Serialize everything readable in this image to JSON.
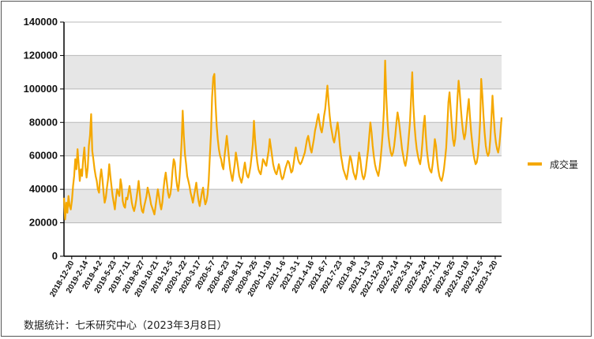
{
  "chart_data": {
    "type": "line",
    "series": [
      {
        "name": "成交量",
        "color": "#F5A800",
        "values": [
          35000,
          22000,
          32000,
          26000,
          36000,
          30000,
          28000,
          33000,
          42000,
          48000,
          58000,
          52000,
          64000,
          55000,
          45000,
          52000,
          48000,
          58000,
          65000,
          54000,
          47000,
          53000,
          66000,
          72000,
          85000,
          63000,
          58000,
          52000,
          48000,
          45000,
          40000,
          38000,
          47000,
          52000,
          46000,
          38000,
          32000,
          35000,
          41000,
          46000,
          55000,
          48000,
          42000,
          36000,
          32000,
          28000,
          35000,
          40000,
          38000,
          36000,
          46000,
          42000,
          33000,
          30000,
          29000,
          35000,
          34000,
          38000,
          42000,
          37000,
          32000,
          29000,
          27000,
          30000,
          34000,
          39000,
          45000,
          38000,
          31000,
          27000,
          26000,
          30000,
          33000,
          36000,
          41000,
          38000,
          35000,
          31000,
          29000,
          27000,
          25000,
          30000,
          35000,
          40000,
          36000,
          31000,
          28000,
          32000,
          40000,
          46000,
          50000,
          44000,
          38000,
          35000,
          37000,
          42000,
          51000,
          58000,
          56000,
          48000,
          42000,
          39000,
          45000,
          55000,
          68000,
          87000,
          72000,
          61000,
          55000,
          48000,
          45000,
          42000,
          38000,
          35000,
          32000,
          36000,
          40000,
          44000,
          38000,
          33000,
          30000,
          34000,
          38000,
          41000,
          35000,
          31000,
          33000,
          37000,
          45000,
          60000,
          73000,
          95000,
          107000,
          109000,
          92000,
          78000,
          70000,
          64000,
          60000,
          58000,
          54000,
          52000,
          60000,
          66000,
          72000,
          65000,
          58000,
          52000,
          48000,
          45000,
          50000,
          55000,
          62000,
          58000,
          53000,
          48000,
          46000,
          44000,
          47000,
          52000,
          56000,
          51000,
          48000,
          47000,
          50000,
          54000,
          60000,
          67000,
          81000,
          70000,
          62000,
          56000,
          52000,
          50000,
          49000,
          53000,
          58000,
          57000,
          55000,
          54000,
          59000,
          63000,
          70000,
          65000,
          60000,
          55000,
          52000,
          50000,
          49000,
          52000,
          55000,
          52000,
          48000,
          46000,
          47000,
          50000,
          53000,
          55000,
          57000,
          56000,
          53000,
          50000,
          51000,
          55000,
          60000,
          65000,
          62000,
          58000,
          56000,
          55000,
          56000,
          58000,
          60000,
          62000,
          66000,
          70000,
          72000,
          68000,
          64000,
          62000,
          66000,
          70000,
          75000,
          78000,
          82000,
          85000,
          80000,
          76000,
          74000,
          78000,
          84000,
          88000,
          95000,
          102000,
          92000,
          84000,
          78000,
          74000,
          70000,
          68000,
          72000,
          76000,
          80000,
          74000,
          66000,
          60000,
          56000,
          52000,
          50000,
          48000,
          46000,
          50000,
          55000,
          60000,
          58000,
          54000,
          50000,
          48000,
          46000,
          50000,
          56000,
          62000,
          58000,
          52000,
          48000,
          46000,
          48000,
          52000,
          58000,
          64000,
          72000,
          80000,
          74000,
          66000,
          60000,
          55000,
          52000,
          50000,
          48000,
          52000,
          58000,
          66000,
          75000,
          88000,
          117000,
          96000,
          82000,
          72000,
          66000,
          62000,
          60000,
          62000,
          66000,
          72000,
          80000,
          86000,
          82000,
          76000,
          70000,
          64000,
          60000,
          56000,
          54000,
          58000,
          64000,
          72000,
          80000,
          95000,
          110000,
          90000,
          78000,
          70000,
          64000,
          60000,
          57000,
          55000,
          60000,
          68000,
          78000,
          84000,
          72000,
          63000,
          57000,
          53000,
          51000,
          50000,
          55000,
          62000,
          70000,
          66000,
          58000,
          52000,
          48000,
          46000,
          45000,
          48000,
          52000,
          58000,
          65000,
          78000,
          92000,
          98000,
          88000,
          78000,
          70000,
          66000,
          70000,
          80000,
          95000,
          105000,
          98000,
          88000,
          80000,
          74000,
          70000,
          73000,
          80000,
          88000,
          94000,
          84000,
          75000,
          68000,
          62000,
          58000,
          55000,
          56000,
          60000,
          68000,
          80000,
          106000,
          96000,
          84000,
          74000,
          66000,
          62000,
          60000,
          62000,
          70000,
          82000,
          96000,
          84000,
          74000,
          68000,
          64000,
          62000,
          66000,
          74000,
          83000
        ]
      }
    ],
    "x_tick_labels": [
      "2018-12-20",
      "2019-2-14",
      "2019-4-2",
      "2019-5-23",
      "2019-7-11",
      "2019-8-27",
      "2019-10-21",
      "2019-12-5",
      "2020-1-22",
      "2020-3-17",
      "2020-5-7",
      "2020-6-23",
      "2020-8-11",
      "2020-9-25",
      "2020-11-19",
      "2021-1-6",
      "2021-3-1",
      "2021-4-16",
      "2021-6-7",
      "2021-7-23",
      "2021-9-8",
      "2021-11-3",
      "2021-12-20",
      "2022-2-14",
      "2022-3-31",
      "2022-5-24",
      "2022-7-11",
      "2022-8-25",
      "2022-10-19",
      "2022-12-5",
      "2023-1-20"
    ],
    "y_ticks": [
      "0",
      "20000",
      "40000",
      "60000",
      "80000",
      "100000",
      "120000",
      "140000"
    ],
    "ylim": [
      0,
      140000
    ],
    "grid": true,
    "legend": {
      "position": "right",
      "label": "成交量"
    }
  },
  "source_note": "数据统计：七禾研究中心（2023年3月8日）"
}
